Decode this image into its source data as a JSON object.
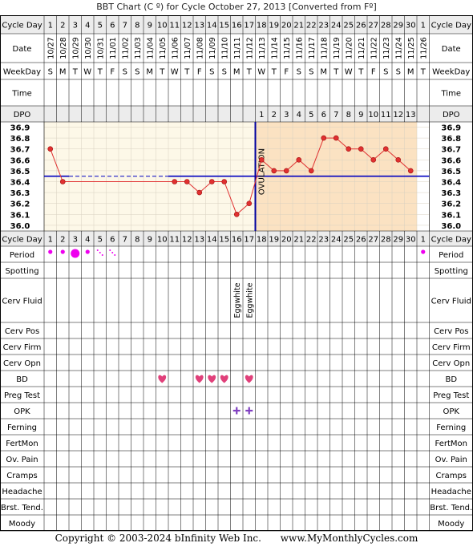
{
  "title": "BBT Chart (C º) for Cycle October 27, 2013  [Converted from Fº]",
  "footer": {
    "copyright": "Copyright © 2003-2024 bInfinity Web Inc.",
    "site": "www.MyMonthlyCycles.com"
  },
  "colors": {
    "grid": "#000000",
    "header_bg": "#ececec",
    "pre_ovulation_bg": "#fdf8e8",
    "post_ovulation_bg": "#fbe2c2",
    "temp_line": "#e03030",
    "coverline": "#0000c0",
    "ovulation_line": "#0000a0",
    "period": "#ee00ee",
    "heart": "#e0407a",
    "opk": "#8040c0"
  },
  "row_labels": {
    "cycle_day": "Cycle Day",
    "date": "Date",
    "weekday": "WeekDay",
    "time": "Time",
    "dpo": "DPO",
    "period": "Period",
    "spotting": "Spotting",
    "cerv_fluid": "Cerv Fluid",
    "cerv_pos": "Cerv Pos",
    "cerv_firm": "Cerv Firm",
    "cerv_opn": "Cerv Opn",
    "bd": "BD",
    "preg_test": "Preg Test",
    "opk": "OPK",
    "ferning": "Ferning",
    "fertmon": "FertMon",
    "ov_pain": "Ov. Pain",
    "cramps": "Cramps",
    "headache": "Headache",
    "brst_tend": "Brst. Tend.",
    "moody": "Moody"
  },
  "chart_data": {
    "type": "line",
    "cycle_days": [
      "1",
      "2",
      "3",
      "4",
      "5",
      "6",
      "7",
      "8",
      "9",
      "10",
      "11",
      "12",
      "13",
      "14",
      "15",
      "16",
      "17",
      "18",
      "19",
      "20",
      "21",
      "22",
      "23",
      "24",
      "25",
      "26",
      "27",
      "28",
      "29",
      "30",
      "1"
    ],
    "dates": [
      "10/27",
      "10/28",
      "10/29",
      "10/30",
      "10/31",
      "11/01",
      "11/02",
      "11/03",
      "11/04",
      "11/05",
      "11/06",
      "11/07",
      "11/08",
      "11/09",
      "11/10",
      "11/11",
      "11/12",
      "11/13",
      "11/14",
      "11/15",
      "11/16",
      "11/17",
      "11/18",
      "11/19",
      "11/20",
      "11/21",
      "11/22",
      "11/23",
      "11/24",
      "11/25",
      "11/26"
    ],
    "weekdays": [
      "S",
      "M",
      "T",
      "W",
      "T",
      "F",
      "S",
      "S",
      "M",
      "T",
      "W",
      "T",
      "F",
      "S",
      "S",
      "M",
      "T",
      "W",
      "T",
      "F",
      "S",
      "S",
      "M",
      "T",
      "W",
      "T",
      "F",
      "S",
      "S",
      "M",
      "T"
    ],
    "dpo": [
      "",
      "",
      "",
      "",
      "",
      "",
      "",
      "",
      "",
      "",
      "",
      "",
      "",
      "",
      "",
      "",
      "",
      "1",
      "2",
      "3",
      "4",
      "5",
      "6",
      "7",
      "8",
      "9",
      "10",
      "11",
      "12",
      "13",
      ""
    ],
    "y_ticks": [
      "36.9",
      "36.8",
      "36.7",
      "36.6",
      "36.5",
      "36.4",
      "36.3",
      "36.2",
      "36.1",
      "36.0"
    ],
    "ylim": [
      36.0,
      36.9
    ],
    "temperatures": [
      36.7,
      36.4,
      null,
      null,
      null,
      null,
      null,
      null,
      null,
      null,
      36.4,
      36.4,
      36.3,
      36.4,
      36.4,
      36.1,
      36.2,
      36.6,
      36.5,
      36.5,
      36.6,
      36.5,
      36.8,
      36.8,
      36.7,
      36.7,
      36.6,
      36.7,
      36.6,
      36.5,
      null
    ],
    "coverline": 36.45,
    "ovulation_day": 17,
    "ovulation_label": "OVULATION",
    "period": [
      "small",
      "small",
      "large",
      "small",
      "spot",
      "spot",
      "",
      "",
      "",
      "",
      "",
      "",
      "",
      "",
      "",
      "",
      "",
      "",
      "",
      "",
      "",
      "",
      "",
      "",
      "",
      "",
      "",
      "",
      "",
      "",
      "small"
    ],
    "cerv_fluid": {
      "16": "Eggwhite",
      "17": "Eggwhite"
    },
    "bd_days": [
      10,
      13,
      14,
      15,
      17
    ],
    "opk_positive_days": [
      16,
      17
    ]
  }
}
